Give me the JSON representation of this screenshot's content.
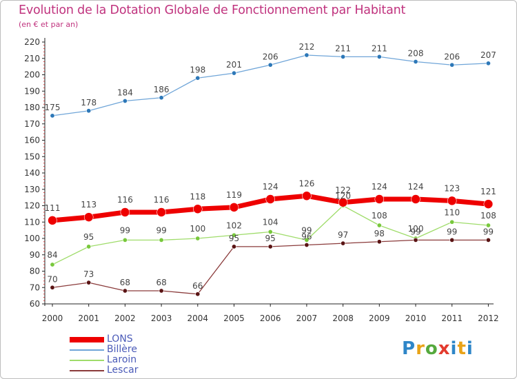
{
  "title": "Evolution de la Dotation Globale de Fonctionnement par Habitant",
  "subtitle": "(en € et par an)",
  "logo_text": "Proxiti",
  "chart_data": {
    "type": "line",
    "title": "Evolution de la Dotation Globale de Fonctionnement par Habitant",
    "subtitle": "(en € et par an)",
    "xlabel": "",
    "ylabel": "",
    "x": [
      "2000",
      "2001",
      "2002",
      "2003",
      "2004",
      "2005",
      "2006",
      "2007",
      "2008",
      "2009",
      "2010",
      "2011",
      "2012"
    ],
    "ylim": [
      60,
      220
    ],
    "yticks": [
      60,
      70,
      80,
      90,
      100,
      110,
      120,
      130,
      140,
      150,
      160,
      170,
      180,
      190,
      200,
      210,
      220
    ],
    "grid": false,
    "legend_position": "bottom-left",
    "series": [
      {
        "name": "LONS",
        "color": "#ee0000",
        "marker_color": "#ee0000",
        "values": [
          111,
          113,
          116,
          116,
          118,
          119,
          124,
          126,
          122,
          124,
          124,
          123,
          121
        ]
      },
      {
        "name": "Billère",
        "color": "#6fa5d8",
        "marker_color": "#2d78b8",
        "values": [
          175,
          178,
          184,
          186,
          198,
          201,
          206,
          212,
          211,
          211,
          208,
          206,
          207
        ]
      },
      {
        "name": "Laroin",
        "color": "#9fdc6a",
        "marker_color": "#78c83c",
        "values": [
          84,
          95,
          99,
          99,
          100,
          102,
          104,
          99,
          120,
          108,
          100,
          110,
          108
        ]
      },
      {
        "name": "Lescar",
        "color": "#8a3a3a",
        "marker_color": "#5a1414",
        "values": [
          70,
          73,
          68,
          68,
          66,
          95,
          95,
          96,
          97,
          98,
          99,
          99,
          99
        ]
      }
    ],
    "data_labels": [
      [
        "111",
        "113",
        "116",
        "116",
        "118",
        "119",
        "124",
        "126",
        "122",
        "124",
        "124",
        "123",
        "121"
      ],
      [
        "175",
        "178",
        "184",
        "186",
        "198",
        "201",
        "206",
        "212",
        "211",
        "211",
        "208",
        "206",
        "207"
      ],
      [
        "84",
        "95",
        "99",
        "99",
        "100",
        "102",
        "104",
        "99",
        "120",
        "108",
        "100",
        "110",
        "108"
      ],
      [
        "70",
        "73",
        "68",
        "68",
        "66",
        "95",
        "95",
        "96",
        "97",
        "98",
        "99",
        "99",
        "99"
      ]
    ]
  }
}
